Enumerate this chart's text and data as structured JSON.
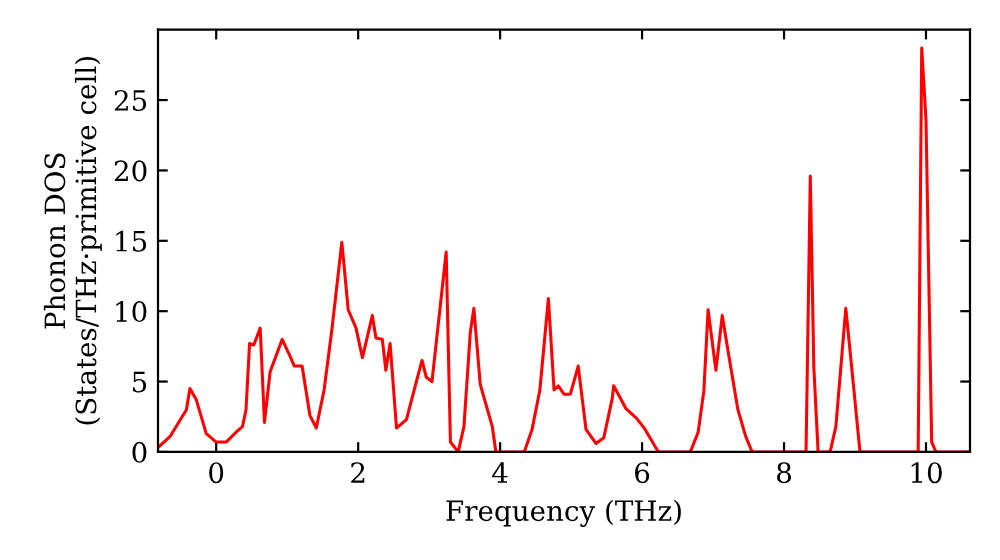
{
  "chart_data": {
    "type": "line",
    "xlabel": "Frequency (THz)",
    "ylabel": "Phonon DOS\n(States/THz·primitive cell)",
    "xlim": [
      -0.82,
      10.62
    ],
    "ylim": [
      0,
      30
    ],
    "xticks": [
      0,
      2,
      4,
      6,
      8,
      10
    ],
    "yticks": [
      0,
      5,
      10,
      15,
      20,
      25
    ],
    "grid": false,
    "marker": "none",
    "line_style": "solid",
    "series": [
      {
        "color": "#ff0000",
        "x": [
          -0.82,
          -0.65,
          -0.42,
          -0.37,
          -0.28,
          -0.14,
          0,
          0.14,
          0.28,
          0.37,
          0.42,
          0.47,
          0.53,
          0.62,
          0.68,
          0.76,
          0.93,
          1.04,
          1.1,
          1.21,
          1.32,
          1.41,
          1.52,
          1.63,
          1.77,
          1.86,
          1.97,
          2.06,
          2.2,
          2.25,
          2.34,
          2.39,
          2.45,
          2.54,
          2.68,
          2.82,
          2.9,
          2.96,
          3.04,
          3.24,
          3.3,
          3.41,
          3.49,
          3.58,
          3.63,
          3.72,
          3.89,
          3.94,
          4.34,
          4.45,
          4.56,
          4.68,
          4.76,
          4.82,
          4.9,
          4.99,
          5.1,
          5.21,
          5.35,
          5.46,
          5.58,
          5.6,
          5.77,
          5.92,
          6.03,
          6.23,
          6.68,
          6.79,
          6.87,
          6.93,
          7.04,
          7.13,
          7.21,
          7.35,
          7.46,
          7.55,
          8.31,
          8.37,
          8.42,
          8.48,
          8.65,
          8.73,
          8.87,
          8.93,
          9.07,
          9.89,
          9.94,
          10.0,
          10.08,
          10.14,
          10.62
        ],
        "values": [
          0.3,
          1.1,
          3.0,
          4.5,
          3.7,
          1.3,
          0.7,
          0.7,
          1.4,
          1.8,
          3.0,
          7.7,
          7.6,
          8.8,
          2.1,
          5.7,
          8.0,
          6.8,
          6.1,
          6.1,
          2.6,
          1.7,
          4.4,
          8.7,
          14.9,
          10.1,
          8.8,
          6.7,
          9.7,
          8.1,
          8.0,
          5.8,
          7.7,
          1.7,
          2.3,
          5.0,
          6.5,
          5.3,
          5.0,
          14.2,
          0.7,
          0,
          1.8,
          8.5,
          10.2,
          4.8,
          1.8,
          0,
          0,
          1.6,
          4.4,
          10.9,
          4.4,
          4.7,
          4.1,
          4.1,
          6.1,
          1.6,
          0.6,
          1.0,
          3.8,
          4.7,
          3.1,
          2.4,
          1.7,
          0,
          0,
          1.4,
          4.3,
          10.1,
          5.8,
          9.7,
          7.2,
          3.0,
          1.1,
          0,
          0,
          19.6,
          6.0,
          0,
          0,
          1.8,
          10.2,
          7.2,
          0,
          0,
          28.7,
          23.6,
          0.7,
          0,
          0
        ]
      }
    ]
  }
}
